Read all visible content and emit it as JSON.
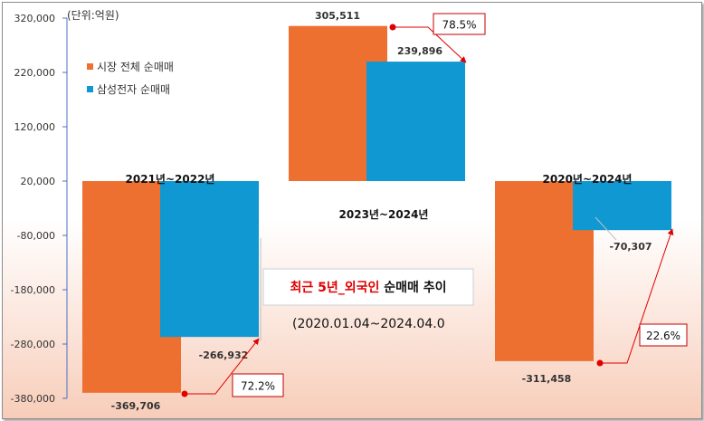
{
  "chart_data": {
    "type": "bar",
    "unit_label": "(단위:억원)",
    "categories": [
      "2021년~2022년",
      "2023년~2024년",
      "2020년~2024년"
    ],
    "series": [
      {
        "name": "시장 전체 순매매",
        "color": "#ed7031",
        "values": [
          -369706,
          305511,
          -311458
        ]
      },
      {
        "name": "삼성전자 순매매",
        "color": "#1098d2",
        "values": [
          -266932,
          239896,
          -70307
        ]
      }
    ],
    "value_labels": [
      [
        "-369,706",
        "305,511",
        "-311,458"
      ],
      [
        "-266,932",
        "239,896",
        "-70,307"
      ]
    ],
    "percentages": [
      "72.2%",
      "78.5%",
      "22.6%"
    ],
    "ylim": [
      -380000,
      320000
    ],
    "yticks": [
      320000,
      220000,
      120000,
      20000,
      -80000,
      -180000,
      -280000,
      -380000
    ],
    "ytick_labels": [
      "320,000",
      "220,000",
      "120,000",
      "20,000",
      "-80,000",
      "-180,000",
      "-280,000",
      "-380,000"
    ],
    "baseline": 20000,
    "legend_position": "top-left",
    "grid": false,
    "annotation": {
      "title_red": "최근 5년_외국인",
      "title_dark": "순매매 추이",
      "subtitle": "(2020.01.04~2024.04.0"
    }
  }
}
